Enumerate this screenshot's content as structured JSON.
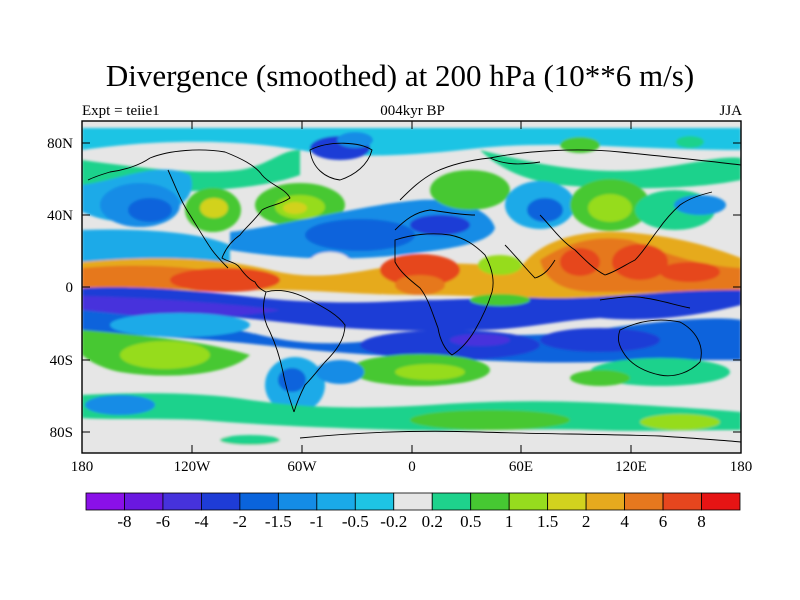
{
  "title": "Divergence (smoothed) at 200 hPa (10**6 m/s)",
  "subtitle_left": "Expt = teiie1",
  "subtitle_center": "004kyr BP",
  "subtitle_right": "JJA",
  "y_ticks": [
    "80N",
    "40N",
    "0",
    "40S",
    "80S"
  ],
  "x_ticks": [
    "180",
    "120W",
    "60W",
    "0",
    "60E",
    "120E",
    "180"
  ],
  "colorbar": {
    "colors": [
      "#8a10e8",
      "#6a18e0",
      "#4632dc",
      "#1e3cd6",
      "#0a64dc",
      "#148ce6",
      "#1aaae8",
      "#1ec4e4",
      "#e6e6e6",
      "#1ed28c",
      "#46c832",
      "#96dc1e",
      "#d2d21e",
      "#e6aa1e",
      "#e6781e",
      "#e6461e",
      "#e61414"
    ],
    "labels": [
      "-8",
      "-6",
      "-4",
      "-2",
      "-1.5",
      "-1",
      "-0.5",
      "-0.2",
      "0.2",
      "0.5",
      "1",
      "1.5",
      "2",
      "4",
      "6",
      "8"
    ]
  }
}
